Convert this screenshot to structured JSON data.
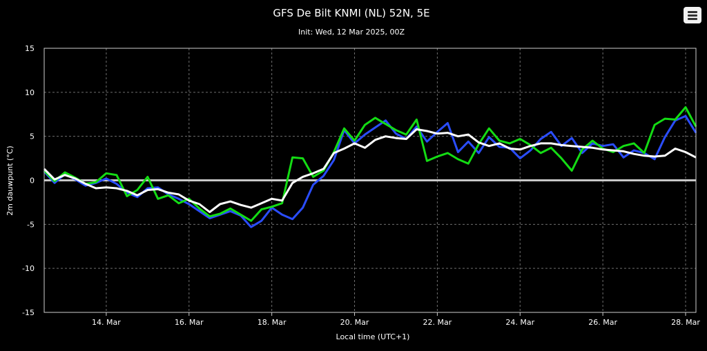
{
  "header": {
    "title": "GFS De Bilt KNMI (NL) 52N, 5E",
    "subtitle": "Init: Wed, 12 Mar 2025, 00Z"
  },
  "chart_data": {
    "type": "line",
    "xlabel": "Local time (UTC+1)",
    "ylabel": "2m dauwpunt (°C)",
    "ylim": [
      -15,
      15
    ],
    "yticks": [
      -15,
      -10,
      -5,
      0,
      5,
      10,
      15
    ],
    "xlim": [
      "2025-03-12 12:00",
      "2025-03-28 06:00"
    ],
    "xticks": [
      "14. Mar",
      "16. Mar",
      "18. Mar",
      "20. Mar",
      "22. Mar",
      "24. Mar",
      "26. Mar",
      "28. Mar"
    ],
    "grid": true,
    "legend": "none",
    "x": [
      "2025-03-12 12:00",
      "2025-03-12 18:00",
      "2025-03-13 00:00",
      "2025-03-13 06:00",
      "2025-03-13 12:00",
      "2025-03-13 18:00",
      "2025-03-14 00:00",
      "2025-03-14 06:00",
      "2025-03-14 12:00",
      "2025-03-14 18:00",
      "2025-03-15 00:00",
      "2025-03-15 06:00",
      "2025-03-15 12:00",
      "2025-03-15 18:00",
      "2025-03-16 00:00",
      "2025-03-16 06:00",
      "2025-03-16 12:00",
      "2025-03-16 18:00",
      "2025-03-17 00:00",
      "2025-03-17 06:00",
      "2025-03-17 12:00",
      "2025-03-17 18:00",
      "2025-03-18 00:00",
      "2025-03-18 06:00",
      "2025-03-18 12:00",
      "2025-03-18 18:00",
      "2025-03-19 00:00",
      "2025-03-19 06:00",
      "2025-03-19 12:00",
      "2025-03-19 18:00",
      "2025-03-20 00:00",
      "2025-03-20 06:00",
      "2025-03-20 12:00",
      "2025-03-20 18:00",
      "2025-03-21 00:00",
      "2025-03-21 06:00",
      "2025-03-21 12:00",
      "2025-03-21 18:00",
      "2025-03-22 00:00",
      "2025-03-22 06:00",
      "2025-03-22 12:00",
      "2025-03-22 18:00",
      "2025-03-23 00:00",
      "2025-03-23 06:00",
      "2025-03-23 12:00",
      "2025-03-23 18:00",
      "2025-03-24 00:00",
      "2025-03-24 06:00",
      "2025-03-24 12:00",
      "2025-03-24 18:00",
      "2025-03-25 00:00",
      "2025-03-25 06:00",
      "2025-03-25 12:00",
      "2025-03-25 18:00",
      "2025-03-26 00:00",
      "2025-03-26 06:00",
      "2025-03-26 12:00",
      "2025-03-26 18:00",
      "2025-03-27 00:00",
      "2025-03-27 06:00",
      "2025-03-27 12:00",
      "2025-03-27 18:00",
      "2025-03-28 00:00",
      "2025-03-28 06:00"
    ],
    "series": [
      {
        "role": "mean",
        "color": "#ffffff",
        "values": [
          1.3,
          0.1,
          0.6,
          0.2,
          -0.4,
          -0.9,
          -0.8,
          -0.9,
          -1.2,
          -1.7,
          -1.1,
          -1.0,
          -1.4,
          -1.6,
          -2.3,
          -2.7,
          -3.6,
          -2.7,
          -2.4,
          -2.8,
          -3.1,
          -2.6,
          -2.1,
          -2.3,
          -0.3,
          0.4,
          0.8,
          1.3,
          3.1,
          3.6,
          4.2,
          3.7,
          4.6,
          5.0,
          4.8,
          4.7,
          5.8,
          5.6,
          5.3,
          5.4,
          5.0,
          5.2,
          4.3,
          3.9,
          4.2,
          3.6,
          3.5,
          3.9,
          4.2,
          4.2,
          4.0,
          3.9,
          3.8,
          3.7,
          3.5,
          3.4,
          3.3,
          3.0,
          2.8,
          2.7,
          2.8,
          3.6,
          3.2,
          2.6
        ]
      },
      {
        "role": "control",
        "color": "#2a4dff",
        "values": [
          1.0,
          -0.3,
          0.7,
          0.1,
          -0.6,
          -0.3,
          0.2,
          -0.4,
          -1.4,
          -1.9,
          -0.9,
          -0.8,
          -1.6,
          -2.1,
          -2.7,
          -3.5,
          -4.3,
          -3.9,
          -3.5,
          -4.0,
          -5.3,
          -4.6,
          -3.1,
          -3.9,
          -4.4,
          -3.1,
          -0.5,
          0.5,
          2.3,
          5.7,
          4.2,
          5.2,
          6.0,
          6.8,
          5.3,
          4.7,
          6.1,
          4.4,
          5.5,
          6.5,
          3.2,
          4.4,
          3.1,
          4.9,
          3.8,
          3.7,
          2.5,
          3.4,
          4.7,
          5.5,
          3.9,
          4.8,
          3.1,
          4.2,
          3.9,
          4.1,
          2.6,
          3.4,
          3.1,
          2.4,
          4.9,
          6.8,
          7.3,
          5.4
        ]
      },
      {
        "role": "operational",
        "color": "#14dc14",
        "values": [
          1.1,
          -0.1,
          0.9,
          0.3,
          -0.4,
          -0.2,
          0.8,
          0.6,
          -1.8,
          -1.1,
          0.4,
          -2.1,
          -1.7,
          -2.6,
          -2.1,
          -3.2,
          -4.1,
          -3.8,
          -3.2,
          -3.9,
          -4.6,
          -3.3,
          -3.0,
          -2.6,
          2.6,
          2.5,
          0.4,
          1.1,
          3.2,
          5.9,
          4.5,
          6.3,
          7.1,
          6.4,
          5.7,
          5.2,
          6.9,
          2.2,
          2.7,
          3.1,
          2.4,
          1.9,
          4.1,
          5.9,
          4.5,
          4.2,
          4.7,
          4.0,
          3.1,
          3.7,
          2.5,
          1.1,
          3.5,
          4.5,
          3.6,
          3.2,
          3.9,
          4.2,
          3.1,
          6.3,
          7.0,
          6.9,
          8.3,
          6.1
        ]
      }
    ]
  }
}
